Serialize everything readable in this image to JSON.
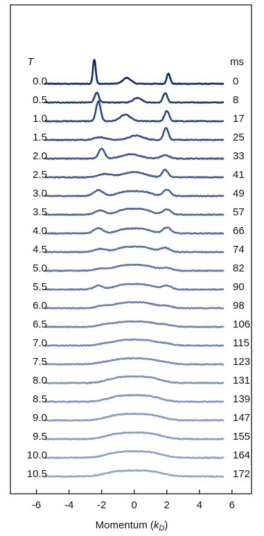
{
  "chart_data": {
    "type": "line",
    "xlabel": "Momentum (",
    "xlabel_symbol": "k",
    "xlabel_sub": "D",
    "xlabel_close": ")",
    "xlim": [
      -7.6,
      7.2
    ],
    "xticks": [
      -6,
      -4,
      -2,
      0,
      2,
      4,
      6
    ],
    "xtick_labels": [
      "-6",
      "-4",
      "-2",
      "0",
      "2",
      "4",
      "6"
    ],
    "x_range": [
      -5.5,
      5.5
    ],
    "left_header": "T",
    "right_header": "ms",
    "left_labels": [
      "0.0",
      "0.5",
      "1.0",
      "1.5",
      "2.0",
      "2.5",
      "3.0",
      "3.5",
      "4.0",
      "4.5",
      "5.0",
      "5.5",
      "6.0",
      "6.5",
      "7.0",
      "7.5",
      "8.0",
      "8.5",
      "9.0",
      "9.5",
      "10.0",
      "10.5"
    ],
    "right_labels": [
      "0",
      "8",
      "17",
      "25",
      "33",
      "41",
      "49",
      "57",
      "66",
      "74",
      "82",
      "90",
      "98",
      "106",
      "115",
      "123",
      "131",
      "139",
      "147",
      "155",
      "164",
      "172"
    ],
    "colors": [
      "#0b2a66",
      "#8ea6c8"
    ],
    "series": [
      {
        "peaks": [
          [
            -2.45,
            2.3,
            0.12
          ],
          [
            -0.45,
            0.55,
            0.35
          ],
          [
            2.1,
            0.95,
            0.15
          ]
        ]
      },
      {
        "peaks": [
          [
            -2.3,
            0.95,
            0.18
          ],
          [
            0.2,
            0.45,
            0.35
          ],
          [
            1.9,
            0.9,
            0.18
          ]
        ]
      },
      {
        "peaks": [
          [
            -2.2,
            1.85,
            0.2
          ],
          [
            -0.55,
            0.6,
            0.45
          ],
          [
            2.0,
            0.95,
            0.2
          ]
        ]
      },
      {
        "peaks": [
          [
            -2.1,
            0.25,
            0.5
          ],
          [
            0.1,
            0.4,
            0.6
          ],
          [
            1.95,
            1.15,
            0.2
          ]
        ]
      },
      {
        "peaks": [
          [
            -2.0,
            0.95,
            0.25
          ],
          [
            -0.2,
            0.4,
            0.8
          ],
          [
            1.9,
            0.3,
            0.4
          ]
        ]
      },
      {
        "peaks": [
          [
            -1.8,
            0.3,
            0.6
          ],
          [
            0.0,
            0.5,
            0.9
          ],
          [
            1.9,
            0.7,
            0.25
          ]
        ]
      },
      {
        "peaks": [
          [
            -2.2,
            0.55,
            0.4
          ],
          [
            0.0,
            0.45,
            1.2
          ],
          [
            2.0,
            0.6,
            0.3
          ]
        ]
      },
      {
        "peaks": [
          [
            -2.1,
            0.4,
            0.45
          ],
          [
            0.0,
            0.55,
            1.2
          ],
          [
            2.0,
            0.5,
            0.35
          ]
        ]
      },
      {
        "peaks": [
          [
            -2.2,
            0.5,
            0.4
          ],
          [
            0.0,
            0.45,
            1.2
          ],
          [
            2.0,
            0.55,
            0.35
          ]
        ]
      },
      {
        "peaks": [
          [
            -2.1,
            0.3,
            0.5
          ],
          [
            0.0,
            0.5,
            1.3
          ],
          [
            1.9,
            0.4,
            0.4
          ]
        ]
      },
      {
        "peaks": [
          [
            -2.0,
            0.2,
            0.6
          ],
          [
            0.0,
            0.55,
            1.4
          ],
          [
            2.0,
            0.25,
            0.5
          ]
        ]
      },
      {
        "peaks": [
          [
            -2.2,
            0.35,
            0.4
          ],
          [
            0.0,
            0.5,
            1.4
          ],
          [
            2.0,
            0.35,
            0.4
          ]
        ]
      },
      {
        "peaks": [
          [
            -2.0,
            0.2,
            0.5
          ],
          [
            0.0,
            0.55,
            1.5
          ],
          [
            2.0,
            0.2,
            0.5
          ]
        ]
      },
      {
        "peaks": [
          [
            -1.9,
            0.15,
            0.6
          ],
          [
            0.0,
            0.5,
            1.6
          ],
          [
            2.0,
            0.15,
            0.6
          ]
        ]
      },
      {
        "peaks": [
          [
            -2.0,
            0.1,
            0.6
          ],
          [
            0.0,
            0.55,
            1.6
          ],
          [
            2.0,
            0.15,
            0.6
          ]
        ]
      },
      {
        "peaks": [
          [
            -2.0,
            0.1,
            0.6
          ],
          [
            0.0,
            0.55,
            1.7
          ],
          [
            2.0,
            0.1,
            0.6
          ]
        ]
      },
      {
        "peaks": [
          [
            0.0,
            0.6,
            1.8
          ]
        ]
      },
      {
        "peaks": [
          [
            0.0,
            0.6,
            1.8
          ]
        ]
      },
      {
        "peaks": [
          [
            0.0,
            0.6,
            1.9
          ]
        ]
      },
      {
        "peaks": [
          [
            0.0,
            0.6,
            1.9
          ]
        ]
      },
      {
        "peaks": [
          [
            0.0,
            0.6,
            1.9
          ]
        ]
      },
      {
        "peaks": [
          [
            0.0,
            0.55,
            2.0
          ]
        ]
      }
    ]
  }
}
